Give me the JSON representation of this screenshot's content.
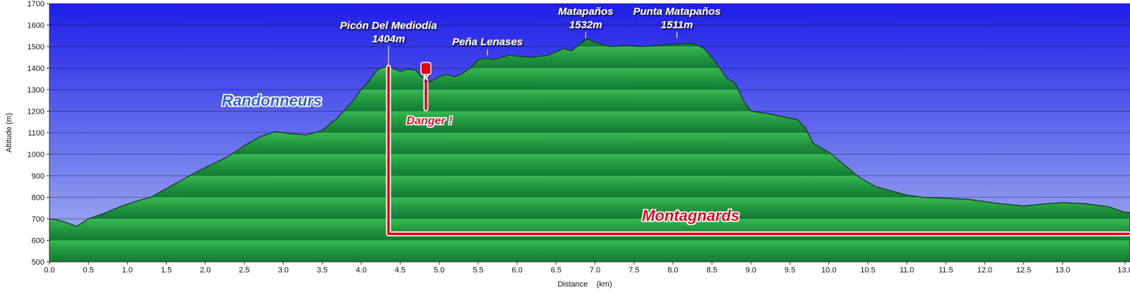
{
  "chart_data": {
    "type": "area",
    "xlabel": "Distance    (km)",
    "ylabel": "Altitude (m)",
    "xlim": [
      0,
      13.8
    ],
    "ylim": [
      500,
      1700
    ],
    "x_ticks": [
      "0.0",
      "0.5",
      "1.0",
      "1.5",
      "2.0",
      "2.5",
      "3.0",
      "3.5",
      "4.0",
      "4.5",
      "5.0",
      "5.5",
      "6.0",
      "6.5",
      "7.0",
      "7.5",
      "8.0",
      "8.5",
      "9.0",
      "9.5",
      "10.0",
      "10.5",
      "11.0",
      "11.5",
      "12.0",
      "12.5",
      "13.0",
      "13.8"
    ],
    "y_ticks": [
      "500",
      "600",
      "700",
      "800",
      "900",
      "1000",
      "1100",
      "1200",
      "1300",
      "1400",
      "1500",
      "1600",
      "1700"
    ],
    "grid": true,
    "colors": {
      "sky_top": "#1e1ee8",
      "sky_bottom": "#a9b8f0",
      "terrain_light": "#36b450",
      "terrain_dark": "#16813a",
      "route": "#e60012",
      "zone_blue": "#2a5fe0"
    },
    "profile": {
      "x": [
        0.0,
        0.1,
        0.2,
        0.35,
        0.5,
        0.7,
        0.9,
        1.1,
        1.3,
        1.5,
        1.7,
        1.9,
        2.1,
        2.3,
        2.5,
        2.7,
        2.9,
        3.1,
        3.3,
        3.5,
        3.7,
        3.9,
        4.0,
        4.1,
        4.2,
        4.3,
        4.4,
        4.5,
        4.6,
        4.7,
        4.8,
        4.85,
        4.9,
        5.0,
        5.1,
        5.2,
        5.3,
        5.4,
        5.5,
        5.6,
        5.7,
        5.8,
        5.9,
        6.0,
        6.2,
        6.4,
        6.6,
        6.7,
        6.8,
        6.9,
        7.0,
        7.2,
        7.4,
        7.6,
        7.8,
        8.0,
        8.2,
        8.3,
        8.4,
        8.5,
        8.6,
        8.7,
        8.8,
        8.9,
        9.0,
        9.2,
        9.4,
        9.6,
        9.7,
        9.8,
        10.0,
        10.2,
        10.4,
        10.6,
        10.8,
        11.0,
        11.2,
        11.5,
        11.8,
        12.0,
        12.2,
        12.5,
        12.8,
        13.0,
        13.3,
        13.6,
        13.8
      ],
      "y": [
        700,
        695,
        685,
        665,
        700,
        725,
        755,
        780,
        800,
        840,
        880,
        920,
        955,
        990,
        1040,
        1080,
        1105,
        1095,
        1090,
        1110,
        1170,
        1250,
        1300,
        1340,
        1390,
        1408,
        1400,
        1385,
        1395,
        1390,
        1350,
        1330,
        1340,
        1360,
        1370,
        1360,
        1375,
        1400,
        1440,
        1445,
        1440,
        1450,
        1460,
        1455,
        1450,
        1460,
        1490,
        1480,
        1510,
        1538,
        1520,
        1500,
        1505,
        1500,
        1505,
        1510,
        1515,
        1510,
        1490,
        1450,
        1400,
        1350,
        1330,
        1250,
        1200,
        1190,
        1175,
        1160,
        1120,
        1050,
        1010,
        950,
        890,
        850,
        830,
        810,
        800,
        795,
        790,
        780,
        770,
        760,
        770,
        775,
        770,
        755,
        730
      ]
    },
    "peaks": [
      {
        "name": "Picón Del Mediodía",
        "alt": "1404m",
        "x": 4.35,
        "y": 1404
      },
      {
        "name": "Peña Lenases",
        "alt": "",
        "x": 5.62,
        "y": 1445
      },
      {
        "name": "Matapaños",
        "alt": "1532m",
        "x": 6.88,
        "y": 1532
      },
      {
        "name": "Punta Matapaños",
        "alt": "1511m",
        "x": 8.05,
        "y": 1511
      }
    ],
    "annotations": {
      "randonneurs": "Randonneurs",
      "montagnards": "Montagnards",
      "danger": "Danger !",
      "cross": "x"
    },
    "danger_route": {
      "start_x": 4.35,
      "start_y": 1404,
      "corner_y": 630,
      "end_x": 13.8
    },
    "danger_marker": {
      "x": 4.83,
      "y_top": 1390,
      "y_bottom": 1210
    }
  }
}
